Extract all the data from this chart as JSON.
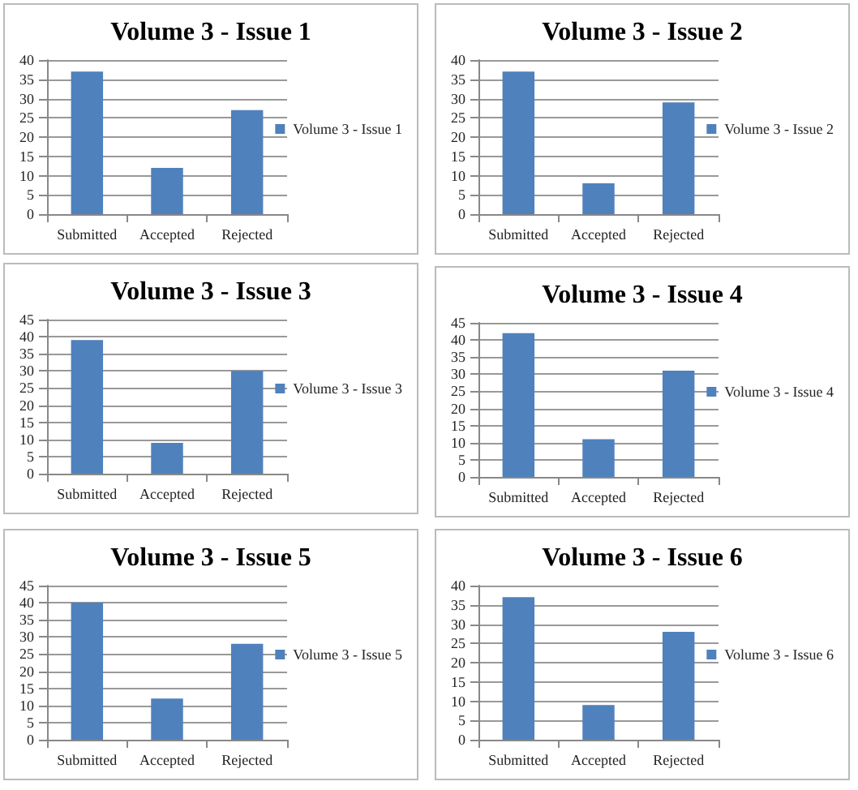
{
  "chart_data": [
    {
      "type": "bar",
      "title": "Volume 3 - Issue 1",
      "categories": [
        "Submitted",
        "Accepted",
        "Rejected"
      ],
      "series": [
        {
          "name": "Volume 3 - Issue 1",
          "color": "#4f81bd",
          "values": [
            37,
            12,
            27
          ]
        }
      ],
      "ylim": [
        0,
        40
      ],
      "yticks": [
        0,
        5,
        10,
        15,
        20,
        25,
        30,
        35,
        40
      ],
      "grid": "y",
      "legend": "right"
    },
    {
      "type": "bar",
      "title": "Volume 3 - Issue 2",
      "categories": [
        "Submitted",
        "Accepted",
        "Rejected"
      ],
      "series": [
        {
          "name": "Volume 3 - Issue 2",
          "color": "#4f81bd",
          "values": [
            37,
            8,
            29
          ]
        }
      ],
      "ylim": [
        0,
        40
      ],
      "yticks": [
        0,
        5,
        10,
        15,
        20,
        25,
        30,
        35,
        40
      ],
      "grid": "y",
      "legend": "right"
    },
    {
      "type": "bar",
      "title": "Volume 3 - Issue 3",
      "categories": [
        "Submitted",
        "Accepted",
        "Rejected"
      ],
      "series": [
        {
          "name": "Volume 3 - Issue 3",
          "color": "#4f81bd",
          "values": [
            39,
            9,
            30
          ]
        }
      ],
      "ylim": [
        0,
        45
      ],
      "yticks": [
        0,
        5,
        10,
        15,
        20,
        25,
        30,
        35,
        40,
        45
      ],
      "grid": "y",
      "legend": "right"
    },
    {
      "type": "bar",
      "title": "Volume 3 - Issue 4",
      "categories": [
        "Submitted",
        "Accepted",
        "Rejected"
      ],
      "series": [
        {
          "name": "Volume 3 - Issue 4",
          "color": "#4f81bd",
          "values": [
            42,
            11,
            31
          ]
        }
      ],
      "ylim": [
        0,
        45
      ],
      "yticks": [
        0,
        5,
        10,
        15,
        20,
        25,
        30,
        35,
        40,
        45
      ],
      "grid": "y",
      "legend": "right"
    },
    {
      "type": "bar",
      "title": "Volume 3 - Issue 5",
      "categories": [
        "Submitted",
        "Accepted",
        "Rejected"
      ],
      "series": [
        {
          "name": "Volume 3 - Issue 5",
          "color": "#4f81bd",
          "values": [
            40,
            12,
            28
          ]
        }
      ],
      "ylim": [
        0,
        45
      ],
      "yticks": [
        0,
        5,
        10,
        15,
        20,
        25,
        30,
        35,
        40,
        45
      ],
      "grid": "y",
      "legend": "right"
    },
    {
      "type": "bar",
      "title": "Volume 3 - Issue 6",
      "categories": [
        "Submitted",
        "Accepted",
        "Rejected"
      ],
      "series": [
        {
          "name": "Volume 3 - Issue 6",
          "color": "#4f81bd",
          "values": [
            37,
            9,
            28
          ]
        }
      ],
      "ylim": [
        0,
        40
      ],
      "yticks": [
        0,
        5,
        10,
        15,
        20,
        25,
        30,
        35,
        40
      ],
      "grid": "y",
      "legend": "right"
    }
  ]
}
